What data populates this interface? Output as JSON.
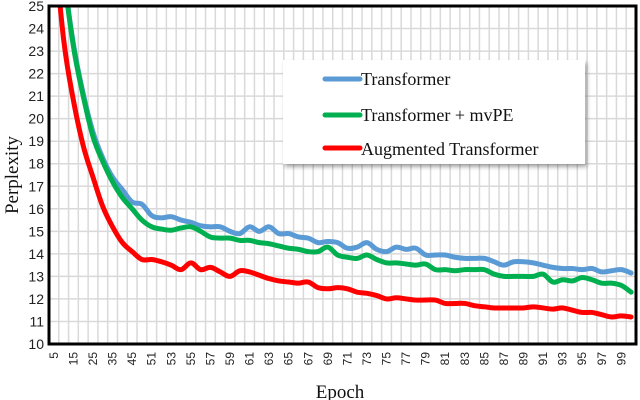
{
  "chart_data": {
    "type": "line",
    "title": "",
    "xlabel": "Epoch",
    "ylabel": "Perplexity",
    "ylim": [
      10,
      25
    ],
    "yticks": [
      10,
      11,
      12,
      13,
      14,
      15,
      16,
      17,
      18,
      19,
      20,
      21,
      22,
      23,
      24,
      25
    ],
    "grid": true,
    "legend_position": "upper right (inset)",
    "x": [
      5,
      10,
      15,
      20,
      25,
      30,
      35,
      40,
      45,
      50,
      51,
      52,
      53,
      54,
      55,
      56,
      57,
      58,
      59,
      60,
      61,
      62,
      63,
      64,
      65,
      66,
      67,
      68,
      69,
      70,
      71,
      72,
      73,
      74,
      75,
      76,
      77,
      78,
      79,
      80,
      81,
      82,
      83,
      84,
      85,
      86,
      87,
      88,
      89,
      90,
      91,
      92,
      93,
      94,
      95,
      96,
      97,
      98,
      99,
      100
    ],
    "xtick_labels": [
      "5",
      "15",
      "25",
      "35",
      "45",
      "51",
      "53",
      "55",
      "57",
      "59",
      "61",
      "63",
      "65",
      "67",
      "69",
      "71",
      "73",
      "75",
      "77",
      "79",
      "81",
      "83",
      "85",
      "87",
      "89",
      "91",
      "93",
      "95",
      "97",
      "99"
    ],
    "series": [
      {
        "name": "Transformer",
        "color": "#5b9bd5",
        "values": [
          31.0,
          26.5,
          23.3,
          21.1,
          19.4,
          18.25,
          17.4,
          16.85,
          16.3,
          16.2,
          15.7,
          15.6,
          15.65,
          15.5,
          15.4,
          15.25,
          15.2,
          15.2,
          15.0,
          14.9,
          15.2,
          15.0,
          15.2,
          14.9,
          14.9,
          14.75,
          14.7,
          14.5,
          14.55,
          14.5,
          14.25,
          14.3,
          14.5,
          14.2,
          14.1,
          14.3,
          14.2,
          14.25,
          13.95,
          13.95,
          13.95,
          13.85,
          13.8,
          13.8,
          13.8,
          13.65,
          13.5,
          13.65,
          13.65,
          13.6,
          13.5,
          13.4,
          13.35,
          13.35,
          13.3,
          13.35,
          13.2,
          13.25,
          13.3,
          13.15
        ]
      },
      {
        "name": "Transformer + mvPE",
        "color": "#00b050",
        "values": [
          31.0,
          26.5,
          23.2,
          21.0,
          19.2,
          18.1,
          17.2,
          16.5,
          16.0,
          15.5,
          15.2,
          15.1,
          15.05,
          15.15,
          15.2,
          15.0,
          14.75,
          14.7,
          14.7,
          14.6,
          14.6,
          14.5,
          14.45,
          14.35,
          14.25,
          14.2,
          14.1,
          14.1,
          14.3,
          13.95,
          13.85,
          13.8,
          13.95,
          13.75,
          13.6,
          13.6,
          13.55,
          13.5,
          13.55,
          13.3,
          13.3,
          13.25,
          13.3,
          13.3,
          13.3,
          13.1,
          13.0,
          13.0,
          13.0,
          13.0,
          13.1,
          12.75,
          12.85,
          12.8,
          12.95,
          12.85,
          12.7,
          12.7,
          12.6,
          12.3
        ]
      },
      {
        "name": "Augmented Transformer",
        "color": "#ff0000",
        "values": [
          28.0,
          23.5,
          20.8,
          18.8,
          17.4,
          16.1,
          15.2,
          14.5,
          14.1,
          13.75,
          13.75,
          13.65,
          13.5,
          13.3,
          13.6,
          13.3,
          13.4,
          13.2,
          13.0,
          13.25,
          13.2,
          13.05,
          12.9,
          12.8,
          12.75,
          12.7,
          12.75,
          12.5,
          12.45,
          12.5,
          12.45,
          12.3,
          12.25,
          12.15,
          12.0,
          12.05,
          12.0,
          11.95,
          11.95,
          11.95,
          11.8,
          11.8,
          11.8,
          11.7,
          11.65,
          11.6,
          11.6,
          11.6,
          11.6,
          11.65,
          11.6,
          11.55,
          11.6,
          11.5,
          11.4,
          11.4,
          11.3,
          11.2,
          11.25,
          11.2
        ]
      }
    ]
  },
  "legend": {
    "items": [
      {
        "label": "Transformer",
        "color": "#5b9bd5"
      },
      {
        "label": "Transformer + mvPE",
        "color": "#00b050"
      },
      {
        "label": "Augmented Transformer",
        "color": "#ff0000"
      }
    ]
  },
  "colors": {
    "grid": "#d9d9d9",
    "axis": "#000000"
  }
}
